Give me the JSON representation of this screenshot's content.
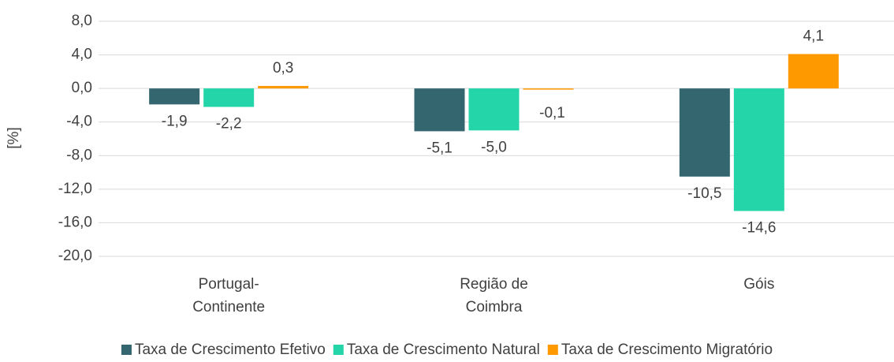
{
  "chart_data": {
    "type": "bar",
    "categories": [
      [
        "Portugal-",
        "Continente"
      ],
      [
        "Região de",
        "Coimbra"
      ],
      [
        "Góis"
      ]
    ],
    "axis_label": "[%]",
    "series": [
      {
        "name": "Taxa de Crescimento Efetivo",
        "color": "#33666e",
        "values": [
          -1.9,
          -5.1,
          -10.5
        ],
        "value_labels": [
          "-1,9",
          "-5,1",
          "-10,5"
        ]
      },
      {
        "name": "Taxa de Crescimento Natural",
        "color": "#23d5a8",
        "values": [
          -2.2,
          -5.0,
          -14.6
        ],
        "value_labels": [
          "-2,2",
          "-5,0",
          "-14,6"
        ]
      },
      {
        "name": "Taxa de Crescimento Migratório",
        "color": "#ff9900",
        "values": [
          0.3,
          -0.1,
          4.1
        ],
        "value_labels": [
          "0,3",
          "-0,1",
          "4,1"
        ]
      }
    ],
    "ylim": [
      -20,
      8
    ],
    "yticks": [
      {
        "value": -20,
        "label": "-20,0"
      },
      {
        "value": -16,
        "label": "-16,0"
      },
      {
        "value": -12,
        "label": "-12,0"
      },
      {
        "value": -8,
        "label": "-8,0"
      },
      {
        "value": -4,
        "label": "-4,0"
      },
      {
        "value": 0,
        "label": "0,0"
      },
      {
        "value": 4,
        "label": "4,0"
      },
      {
        "value": 8,
        "label": "8,0"
      }
    ],
    "grid": true,
    "legend": "bottom"
  }
}
